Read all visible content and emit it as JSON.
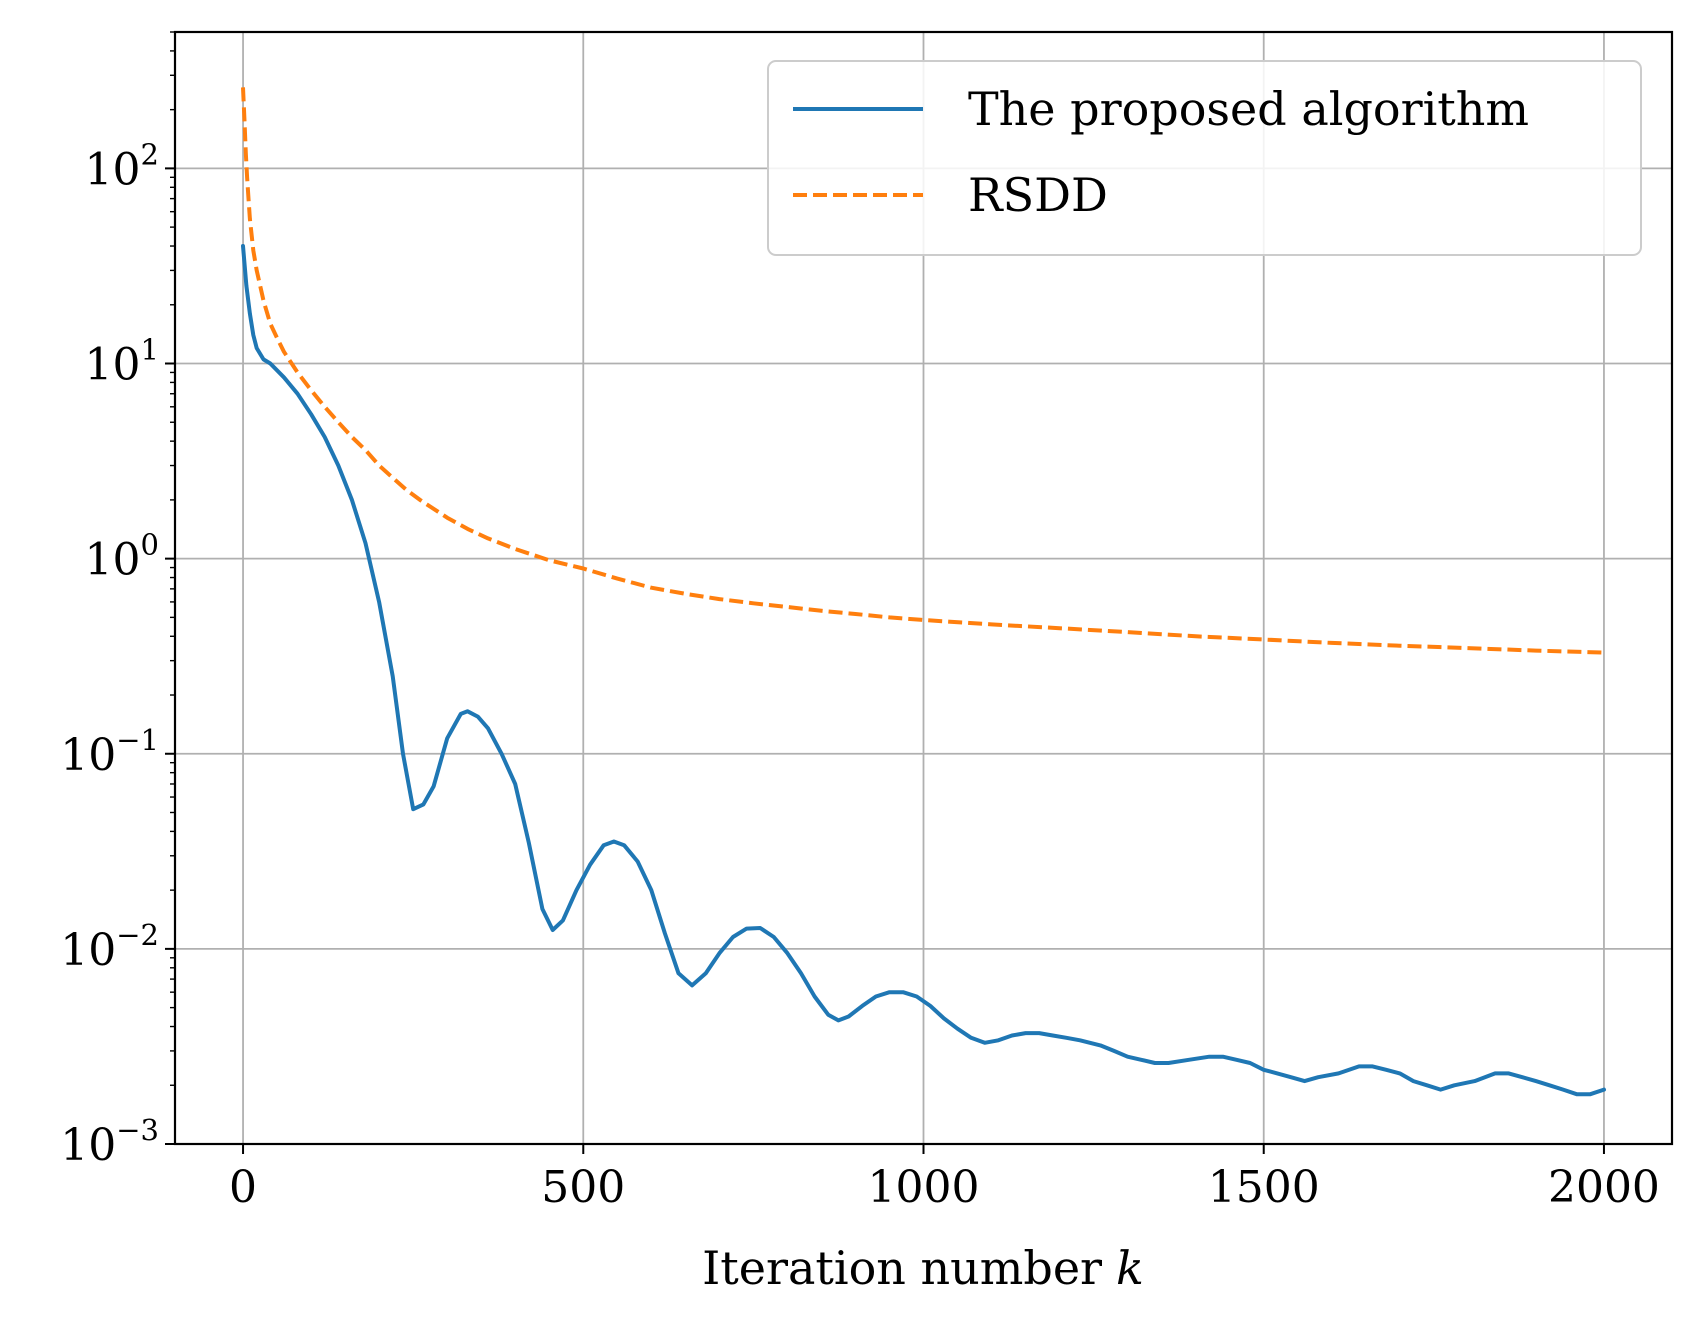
{
  "chart_data": {
    "type": "line",
    "xlabel": "Iteration number",
    "xlabel_var": "k",
    "x_scale": "linear",
    "y_scale": "log",
    "xlim": [
      -100,
      2100
    ],
    "ylim": [
      0.001,
      500
    ],
    "x_ticks": [
      {
        "value": 0,
        "label": "0"
      },
      {
        "value": 500,
        "label": "500"
      },
      {
        "value": 1000,
        "label": "1000"
      },
      {
        "value": 1500,
        "label": "1500"
      },
      {
        "value": 2000,
        "label": "2000"
      }
    ],
    "y_ticks": [
      {
        "value": 0.001,
        "base": "10",
        "exp": "−3"
      },
      {
        "value": 0.01,
        "base": "10",
        "exp": "−2"
      },
      {
        "value": 0.1,
        "base": "10",
        "exp": "−1"
      },
      {
        "value": 1,
        "base": "10",
        "exp": "0"
      },
      {
        "value": 10,
        "base": "10",
        "exp": "1"
      },
      {
        "value": 100,
        "base": "10",
        "exp": "2"
      }
    ],
    "grid": true,
    "legend_position": "top-right",
    "series": [
      {
        "name": "The proposed algorithm",
        "color": "#1f77b4",
        "dash": "solid",
        "points": [
          [
            0,
            40
          ],
          [
            5,
            25
          ],
          [
            10,
            18
          ],
          [
            15,
            14
          ],
          [
            20,
            12
          ],
          [
            30,
            10.5
          ],
          [
            40,
            10
          ],
          [
            60,
            8.5
          ],
          [
            80,
            7
          ],
          [
            100,
            5.5
          ],
          [
            120,
            4.2
          ],
          [
            140,
            3
          ],
          [
            160,
            2
          ],
          [
            180,
            1.2
          ],
          [
            200,
            0.6
          ],
          [
            220,
            0.25
          ],
          [
            235,
            0.1
          ],
          [
            250,
            0.052
          ],
          [
            265,
            0.055
          ],
          [
            280,
            0.068
          ],
          [
            300,
            0.12
          ],
          [
            320,
            0.16
          ],
          [
            330,
            0.165
          ],
          [
            345,
            0.155
          ],
          [
            360,
            0.135
          ],
          [
            380,
            0.1
          ],
          [
            400,
            0.07
          ],
          [
            420,
            0.035
          ],
          [
            440,
            0.016
          ],
          [
            455,
            0.0125
          ],
          [
            470,
            0.014
          ],
          [
            490,
            0.02
          ],
          [
            510,
            0.027
          ],
          [
            530,
            0.034
          ],
          [
            545,
            0.0355
          ],
          [
            560,
            0.034
          ],
          [
            580,
            0.028
          ],
          [
            600,
            0.02
          ],
          [
            620,
            0.012
          ],
          [
            640,
            0.0075
          ],
          [
            660,
            0.0065
          ],
          [
            680,
            0.0075
          ],
          [
            700,
            0.0095
          ],
          [
            720,
            0.0115
          ],
          [
            740,
            0.0127
          ],
          [
            760,
            0.0128
          ],
          [
            780,
            0.0115
          ],
          [
            800,
            0.0095
          ],
          [
            820,
            0.0075
          ],
          [
            840,
            0.0057
          ],
          [
            860,
            0.0046
          ],
          [
            875,
            0.0043
          ],
          [
            890,
            0.0045
          ],
          [
            910,
            0.0051
          ],
          [
            930,
            0.0057
          ],
          [
            950,
            0.006
          ],
          [
            970,
            0.006
          ],
          [
            990,
            0.0057
          ],
          [
            1010,
            0.0051
          ],
          [
            1030,
            0.0044
          ],
          [
            1050,
            0.0039
          ],
          [
            1070,
            0.0035
          ],
          [
            1090,
            0.0033
          ],
          [
            1110,
            0.0034
          ],
          [
            1130,
            0.0036
          ],
          [
            1150,
            0.0037
          ],
          [
            1170,
            0.0037
          ],
          [
            1190,
            0.0036
          ],
          [
            1210,
            0.0035
          ],
          [
            1230,
            0.0034
          ],
          [
            1260,
            0.0032
          ],
          [
            1280,
            0.003
          ],
          [
            1300,
            0.0028
          ],
          [
            1320,
            0.0027
          ],
          [
            1340,
            0.0026
          ],
          [
            1360,
            0.0026
          ],
          [
            1390,
            0.0027
          ],
          [
            1420,
            0.0028
          ],
          [
            1440,
            0.0028
          ],
          [
            1460,
            0.0027
          ],
          [
            1480,
            0.0026
          ],
          [
            1500,
            0.0024
          ],
          [
            1520,
            0.0023
          ],
          [
            1540,
            0.0022
          ],
          [
            1560,
            0.0021
          ],
          [
            1580,
            0.0022
          ],
          [
            1610,
            0.0023
          ],
          [
            1640,
            0.0025
          ],
          [
            1660,
            0.0025
          ],
          [
            1680,
            0.0024
          ],
          [
            1700,
            0.0023
          ],
          [
            1720,
            0.0021
          ],
          [
            1740,
            0.002
          ],
          [
            1760,
            0.0019
          ],
          [
            1780,
            0.002
          ],
          [
            1810,
            0.0021
          ],
          [
            1840,
            0.0023
          ],
          [
            1860,
            0.0023
          ],
          [
            1880,
            0.0022
          ],
          [
            1900,
            0.0021
          ],
          [
            1920,
            0.002
          ],
          [
            1940,
            0.0019
          ],
          [
            1960,
            0.0018
          ],
          [
            1980,
            0.0018
          ],
          [
            2000,
            0.0019
          ]
        ]
      },
      {
        "name": "RSDD",
        "color": "#ff7f0e",
        "dash": "dashed",
        "points": [
          [
            0,
            260
          ],
          [
            2,
            180
          ],
          [
            4,
            120
          ],
          [
            6,
            90
          ],
          [
            8,
            70
          ],
          [
            10,
            55
          ],
          [
            15,
            38
          ],
          [
            20,
            30
          ],
          [
            30,
            21
          ],
          [
            40,
            16
          ],
          [
            50,
            13.5
          ],
          [
            60,
            11.5
          ],
          [
            80,
            9
          ],
          [
            100,
            7.3
          ],
          [
            120,
            6
          ],
          [
            140,
            5
          ],
          [
            160,
            4.2
          ],
          [
            180,
            3.6
          ],
          [
            200,
            3
          ],
          [
            220,
            2.6
          ],
          [
            240,
            2.25
          ],
          [
            260,
            2
          ],
          [
            280,
            1.8
          ],
          [
            300,
            1.62
          ],
          [
            330,
            1.42
          ],
          [
            360,
            1.27
          ],
          [
            400,
            1.12
          ],
          [
            450,
            0.98
          ],
          [
            500,
            0.89
          ],
          [
            550,
            0.79
          ],
          [
            600,
            0.71
          ],
          [
            650,
            0.66
          ],
          [
            700,
            0.62
          ],
          [
            750,
            0.59
          ],
          [
            800,
            0.565
          ],
          [
            850,
            0.54
          ],
          [
            900,
            0.52
          ],
          [
            950,
            0.5
          ],
          [
            1000,
            0.485
          ],
          [
            1100,
            0.46
          ],
          [
            1200,
            0.44
          ],
          [
            1300,
            0.42
          ],
          [
            1400,
            0.4
          ],
          [
            1500,
            0.385
          ],
          [
            1600,
            0.37
          ],
          [
            1700,
            0.358
          ],
          [
            1800,
            0.348
          ],
          [
            1900,
            0.338
          ],
          [
            2000,
            0.33
          ]
        ]
      }
    ]
  }
}
